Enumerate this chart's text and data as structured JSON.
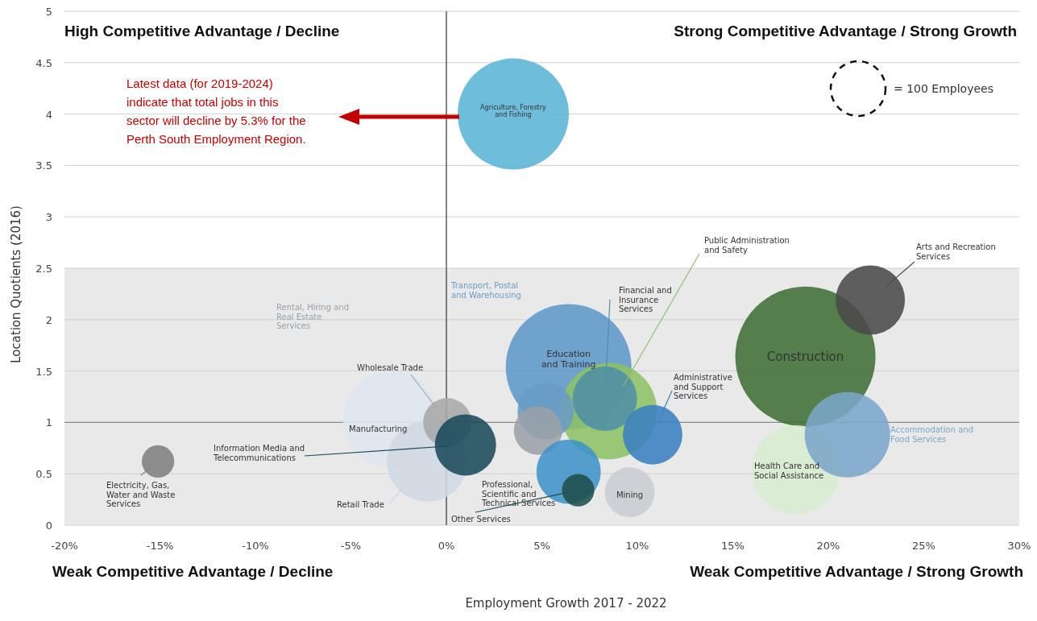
{
  "chart_data": {
    "type": "bubble",
    "xlabel": "Employment Growth 2017 - 2022",
    "ylabel": "Location Quotients (2016)",
    "xlim": [
      -20,
      30
    ],
    "xticks": [
      {
        "value": -20,
        "label": "-20%"
      },
      {
        "value": -15,
        "label": "-15%"
      },
      {
        "value": -10,
        "label": "-10%"
      },
      {
        "value": -5,
        "label": "-5%"
      },
      {
        "value": 0,
        "label": "0%"
      },
      {
        "value": 5,
        "label": "5%"
      },
      {
        "value": 10,
        "label": "10%"
      },
      {
        "value": 15,
        "label": "15%"
      },
      {
        "value": 20,
        "label": "20%"
      },
      {
        "value": 25,
        "label": "25%"
      },
      {
        "value": 30,
        "label": "30%"
      }
    ],
    "ylim": [
      0,
      5
    ],
    "yticks": [
      0,
      0.5,
      1,
      1.5,
      2,
      2.5,
      3,
      3.5,
      4,
      4.5,
      5
    ],
    "grid": "y",
    "size_legend": [
      {
        "value": 100,
        "label": "= 100 Employees"
      }
    ],
    "ref_lines": [
      {
        "axis": "x",
        "value": 0,
        "color": "#333333"
      },
      {
        "axis": "y",
        "value": 1,
        "color": "#8c8c8c"
      }
    ],
    "bands": [
      {
        "axis": "y",
        "from": 0,
        "to": 2.5,
        "color": "#e9e9e9"
      }
    ],
    "annotations": [
      "High Competitive Advantage / Decline",
      "Strong Competitive Advantage / Strong Growth",
      "Weak Competitive Advantage / Decline",
      "Weak Competitive Advantage / Strong Growth",
      "Latest data (for 2019-2024) indicate that total jobs in this sector will decline by 5.3% for the Perth South Employment Region."
    ],
    "series": [
      {
        "name": "Construction",
        "color": "#3f6e35",
        "x": [
          18.8
        ],
        "values": [
          1.64
        ],
        "sizes": [
          655
        ]
      },
      {
        "name": "Agriculture, Forestry and Fishing",
        "color": "#5ab4d6",
        "x": [
          3.5
        ],
        "values": [
          4.0
        ],
        "sizes": [
          412
        ]
      },
      {
        "name": "Education and Training",
        "color": "#5d97c8",
        "x": [
          6.4
        ],
        "values": [
          1.54
        ],
        "sizes": [
          526
        ]
      },
      {
        "name": "Public Administration and Safety",
        "color": "#8dc264",
        "x": [
          8.5
        ],
        "values": [
          1.11
        ],
        "sizes": [
          311
        ]
      },
      {
        "name": "Manufacturing",
        "color": "#dfe6ee",
        "x": [
          -2.9
        ],
        "values": [
          1.03
        ],
        "sizes": [
          311
        ]
      },
      {
        "name": "Retail Trade",
        "color": "#cfd8e2",
        "x": [
          -1.0
        ],
        "values": [
          0.62
        ],
        "sizes": [
          216
        ]
      },
      {
        "name": "Health Care and Social Assistance",
        "color": "#d8ecd0",
        "x": [
          18.3
        ],
        "values": [
          0.54
        ],
        "sizes": [
          262
        ]
      },
      {
        "name": "Accommodation and Food Services",
        "color": "#7aa6c8",
        "x": [
          21.0
        ],
        "values": [
          0.88
        ],
        "sizes": [
          243
        ]
      },
      {
        "name": "Arts and Recreation Services",
        "color": "#4a4a4a",
        "x": [
          22.2
        ],
        "values": [
          2.19
        ],
        "sizes": [
          160
        ]
      },
      {
        "name": "Financial and Insurance Services",
        "color": "#4e8fa6",
        "x": [
          8.3
        ],
        "values": [
          1.23
        ],
        "sizes": [
          138
        ]
      },
      {
        "name": "Transport, Postal and Warehousing",
        "color": "#6a9cc4",
        "x": [
          5.2
        ],
        "values": [
          1.11
        ],
        "sizes": [
          106
        ]
      },
      {
        "name": "Rental, Hiring and Real Estate Services",
        "color": "#9aa0a7",
        "x": [
          4.8
        ],
        "values": [
          0.92
        ],
        "sizes": [
          78
        ]
      },
      {
        "name": "Wholesale Trade",
        "color": "#a8a8a8",
        "x": [
          0.05
        ],
        "values": [
          1.0
        ],
        "sizes": [
          78
        ]
      },
      {
        "name": "Information Media and Telecommunications",
        "color": "#1a4a5a",
        "x": [
          1.0
        ],
        "values": [
          0.78
        ],
        "sizes": [
          125
        ]
      },
      {
        "name": "Administrative and Support Services",
        "color": "#3a80c0",
        "x": [
          10.8
        ],
        "values": [
          0.88
        ],
        "sizes": [
          118
        ]
      },
      {
        "name": "Professional, Scientific and Technical Services",
        "color": "#3e93c8",
        "x": [
          6.4
        ],
        "values": [
          0.52
        ],
        "sizes": [
          138
        ]
      },
      {
        "name": "Mining",
        "color": "#c8ccd2",
        "x": [
          9.6
        ],
        "values": [
          0.32
        ],
        "sizes": [
          83
        ]
      },
      {
        "name": "Other Services",
        "color": "#1f4e4a",
        "x": [
          6.9
        ],
        "values": [
          0.34
        ],
        "sizes": [
          35
        ]
      },
      {
        "name": "Electricity, Gas, Water and Waste Services",
        "color": "#7f7f7f",
        "x": [
          -15.1
        ],
        "values": [
          0.62
        ],
        "sizes": [
          35
        ]
      }
    ]
  }
}
